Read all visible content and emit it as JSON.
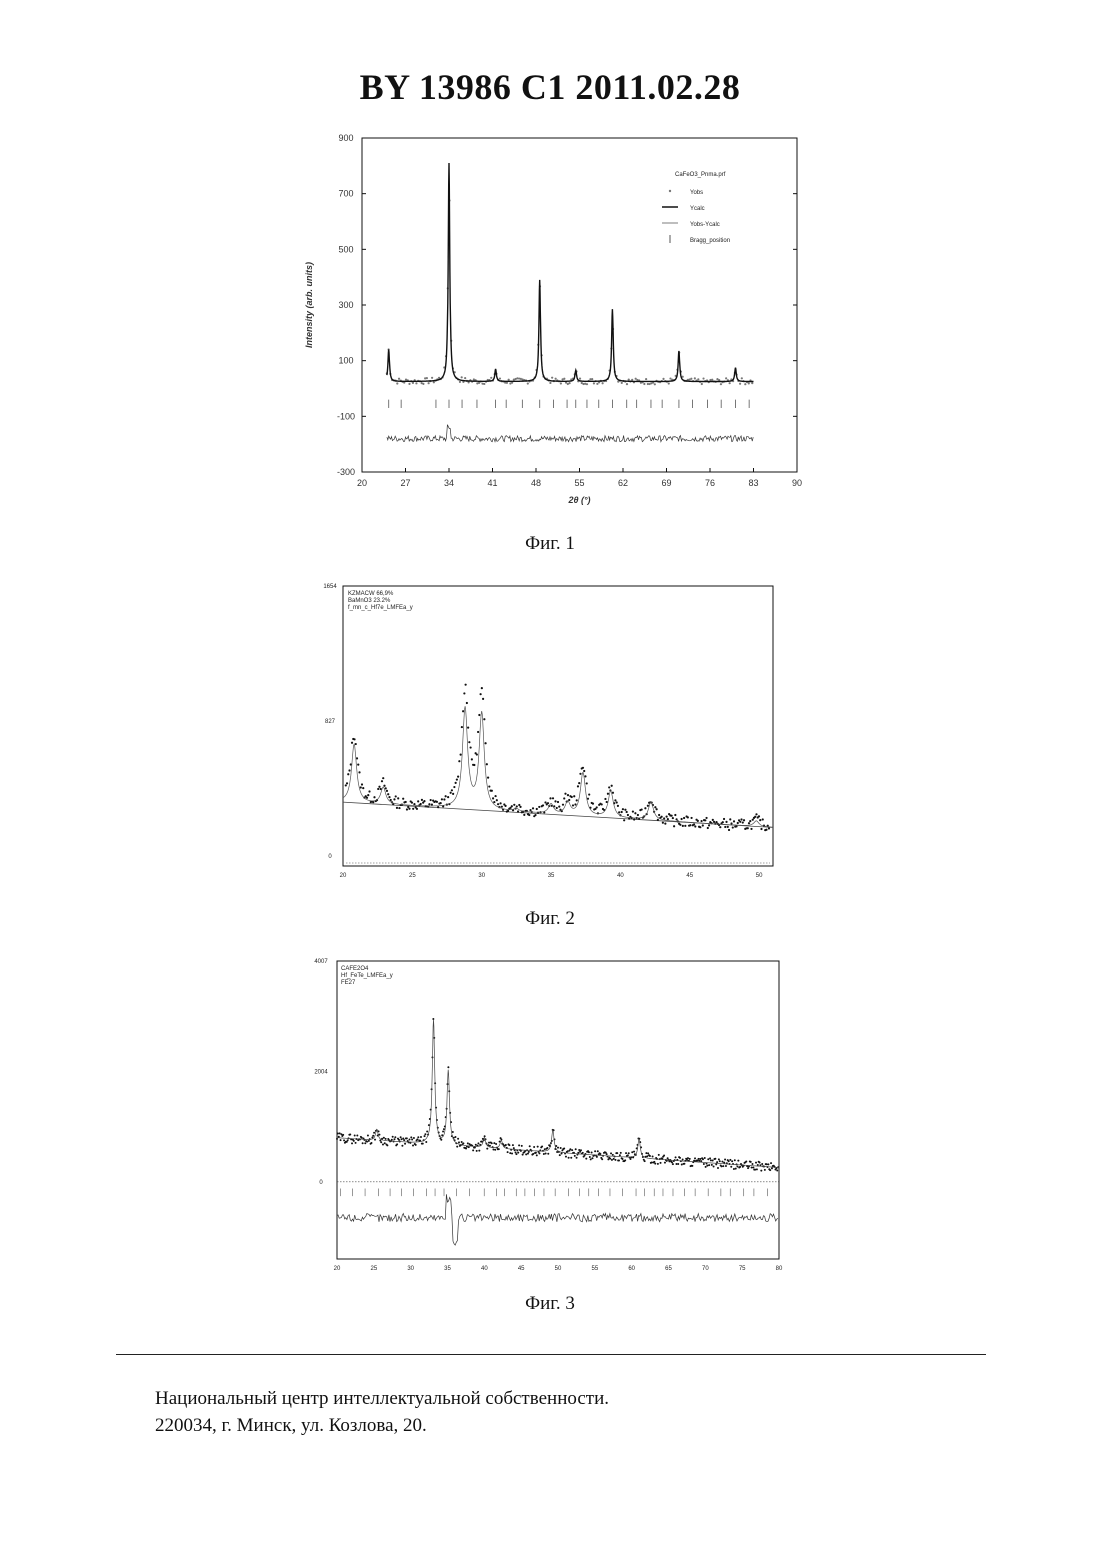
{
  "header": {
    "title": "BY 13986 C1 2011.02.28"
  },
  "figures": [
    {
      "caption": "Фиг. 1"
    },
    {
      "caption": "Фиг. 2"
    },
    {
      "caption": "Фиг. 3"
    }
  ],
  "footer": {
    "line1": "Национальный центр интеллектуальной собственности.",
    "line2": "220034, г. Минск, ул. Козлова, 20."
  },
  "colors": {
    "ink": "#111111",
    "obs": "#777777"
  },
  "chart_data": [
    {
      "type": "line",
      "file_label": "CaFeO3_Pnma.prf",
      "legend": [
        "Yobs",
        "Ycalc",
        "Yobs-Ycalc",
        "Bragg_position"
      ],
      "legend_position": "top-right",
      "xlabel": "2θ (°)",
      "ylabel": "Intensity (arb. units)",
      "xlim": [
        20,
        90
      ],
      "ylim": [
        -300,
        900
      ],
      "xticks": [
        "20",
        "27",
        "34",
        "41",
        "48",
        "55",
        "62",
        "69",
        "76",
        "83",
        "90"
      ],
      "yticks": [
        "-300",
        "-100",
        "100",
        "300",
        "500",
        "700",
        "900"
      ],
      "background": 25,
      "peaks": [
        {
          "x": 24.3,
          "y": 140
        },
        {
          "x": 34.0,
          "y": 810
        },
        {
          "x": 41.5,
          "y": 70
        },
        {
          "x": 48.6,
          "y": 390
        },
        {
          "x": 54.4,
          "y": 65
        },
        {
          "x": 60.3,
          "y": 285
        },
        {
          "x": 71.0,
          "y": 135
        },
        {
          "x": 80.1,
          "y": 75
        }
      ],
      "bragg_positions": [
        24.3,
        26.3,
        31.9,
        34.0,
        36.1,
        38.5,
        41.5,
        43.2,
        45.8,
        48.6,
        50.8,
        53.0,
        54.4,
        56.2,
        58.1,
        60.3,
        62.6,
        64.2,
        66.5,
        68.3,
        71.0,
        73.2,
        75.6,
        77.8,
        80.1,
        82.3
      ],
      "difference_level": -180
    },
    {
      "type": "line",
      "legend": [
        "KZMACW 66,9%",
        "BaMnO3 23.2%",
        "f_mn_c_Hf7e_LMFEa_y"
      ],
      "legend_position": "top-left",
      "xlim": [
        20,
        51
      ],
      "ylim": [
        0,
        1654
      ],
      "xticks": [
        "20",
        "25",
        "30",
        "35",
        "40",
        "45",
        "50"
      ],
      "yticks": [
        "0",
        "827",
        "1654"
      ],
      "peaks": [
        {
          "x": 20.8,
          "y": 750
        },
        {
          "x": 22.9,
          "y": 450
        },
        {
          "x": 28.8,
          "y": 1050
        },
        {
          "x": 30.0,
          "y": 1020
        },
        {
          "x": 32.5,
          "y": 350
        },
        {
          "x": 35.0,
          "y": 400
        },
        {
          "x": 36.2,
          "y": 420
        },
        {
          "x": 37.3,
          "y": 640
        },
        {
          "x": 39.3,
          "y": 520
        },
        {
          "x": 42.2,
          "y": 460
        },
        {
          "x": 42.8,
          "y": 330
        },
        {
          "x": 46.7,
          "y": 330
        },
        {
          "x": 49.8,
          "y": 370
        }
      ]
    },
    {
      "type": "line",
      "legend": [
        "CAFE2O4",
        "Hf_FeTe_LMFEa_y",
        "FE27"
      ],
      "legend_position": "top-left",
      "xlim": [
        20,
        80
      ],
      "ylim": [
        -1400,
        4007
      ],
      "xticks": [
        "20",
        "25",
        "30",
        "35",
        "40",
        "45",
        "50",
        "55",
        "60",
        "65",
        "70",
        "75",
        "80"
      ],
      "yticks": [
        "0",
        "2004",
        "4007"
      ],
      "peaks": [
        {
          "x": 25.4,
          "y": 850
        },
        {
          "x": 33.1,
          "y": 2900
        },
        {
          "x": 35.1,
          "y": 2000
        },
        {
          "x": 40.0,
          "y": 830
        },
        {
          "x": 42.3,
          "y": 800
        },
        {
          "x": 49.3,
          "y": 1050
        },
        {
          "x": 61.0,
          "y": 1000
        }
      ],
      "difference_level": -650
    }
  ]
}
